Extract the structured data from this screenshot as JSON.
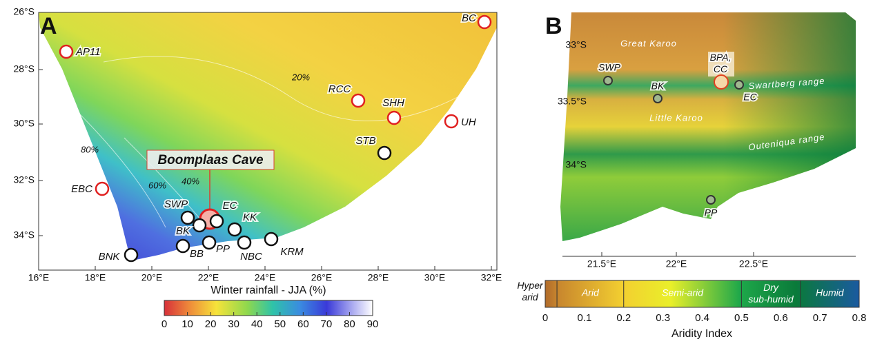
{
  "panel_a": {
    "letter": "A",
    "lat_labels": [
      "26°S",
      "28°S",
      "30°S",
      "32°S",
      "34°S"
    ],
    "lon_labels": [
      "16°E",
      "18°E",
      "20°E",
      "22°E",
      "24°E",
      "26°E",
      "28°E",
      "30°E",
      "32°E"
    ],
    "annotations": [
      "20%",
      "80%",
      "60%",
      "40%"
    ],
    "callout": "Boomplaas Cave",
    "sites": [
      "AP11",
      "BC",
      "RCC",
      "SHH",
      "UH",
      "STB",
      "EBC",
      "SWP",
      "EC",
      "BK",
      "KK",
      "BB",
      "PP",
      "NBC",
      "KRM",
      "BNK"
    ],
    "colorbar": {
      "title": "Winter rainfall - JJA (%)",
      "ticks": [
        0,
        10,
        20,
        30,
        40,
        50,
        60,
        70,
        80,
        90
      ]
    }
  },
  "panel_b": {
    "letter": "B",
    "lat_labels": [
      "33°S",
      "33.5°S",
      "34°S"
    ],
    "lon_labels": [
      "21.5°E",
      "22°E",
      "22.5°E"
    ],
    "region_labels": [
      "Great Karoo",
      "Swartberg range",
      "Little Karoo",
      "Outeniqua range"
    ],
    "sites": [
      "SWP",
      "BK",
      [
        "BPA,",
        "CC"
      ],
      "EC",
      "PP"
    ],
    "colorbar": {
      "title": "Aridity Index",
      "classes": [
        [
          "Hyper",
          "arid"
        ],
        "Arid",
        "Semi-arid",
        [
          "Dry",
          "sub-humid"
        ],
        "Humid"
      ],
      "ticks": [
        0,
        0.1,
        0.2,
        0.3,
        0.4,
        0.5,
        0.6,
        0.7,
        0.8
      ]
    }
  }
}
